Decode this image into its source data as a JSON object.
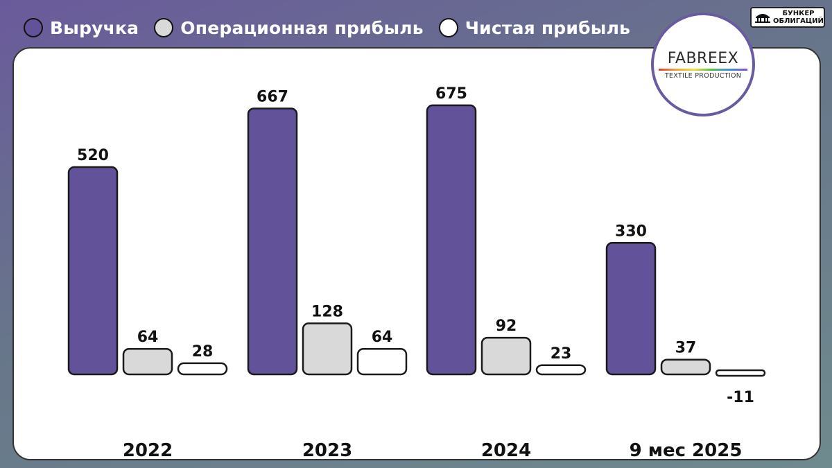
{
  "legend": {
    "revenue": "Выручка",
    "operating_profit": "Операционная прибыль",
    "net_profit": "Чистая прибыль"
  },
  "brand": {
    "line1": "БУНКЕР",
    "line2": "ОБЛИГАЦИЙ"
  },
  "logo": {
    "name": "FABREEX",
    "subtitle": "TEXTILE PRODUCTION"
  },
  "colors": {
    "revenue": "#62529a",
    "operating_profit": "#d9d9d9",
    "net_profit": "#ffffff"
  },
  "chart_data": {
    "type": "bar",
    "categories": [
      "2022",
      "2023",
      "2024",
      "9 мес 2025"
    ],
    "series": [
      {
        "name": "Выручка",
        "values": [
          520,
          667,
          675,
          330
        ]
      },
      {
        "name": "Операционная прибыль",
        "values": [
          64,
          128,
          92,
          37
        ]
      },
      {
        "name": "Чистая прибыль",
        "values": [
          28,
          64,
          23,
          -11
        ]
      }
    ],
    "data_labels": [
      [
        "520",
        "667",
        "675",
        "330"
      ],
      [
        "64",
        "128",
        "92",
        "37"
      ],
      [
        "28",
        "64",
        "23",
        "-11"
      ]
    ],
    "ylim": [
      -11,
      675
    ],
    "grid": false,
    "legend_position": "top-left"
  }
}
